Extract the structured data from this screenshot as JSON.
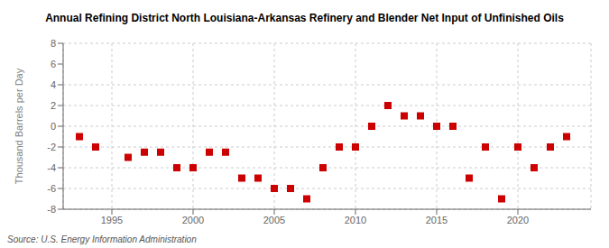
{
  "chart_data": {
    "type": "scatter",
    "title": "Annual Refining District North Louisiana-Arkansas Refinery and Blender Net Input of Unfinished Oils",
    "ylabel": "Thousand Barrels per Day",
    "source": "Source: U.S. Energy Information Administration",
    "x": [
      1993,
      1994,
      1996,
      1997,
      1998,
      1999,
      2000,
      2001,
      2002,
      2003,
      2004,
      2005,
      2006,
      2007,
      2008,
      2009,
      2010,
      2011,
      2012,
      2013,
      2014,
      2015,
      2016,
      2017,
      2018,
      2019,
      2020,
      2021,
      2022,
      2023
    ],
    "values": [
      -1,
      -2,
      -3,
      -2.5,
      -2.5,
      -4,
      -4,
      -2.5,
      -2.5,
      -5,
      -5,
      -6,
      -6,
      -7,
      -4,
      -2,
      -2,
      0,
      2,
      1,
      1,
      0,
      0,
      -5,
      -2,
      -7,
      -2,
      -4,
      -2,
      -1
    ],
    "color": "#cc0000",
    "marker": "square",
    "xlim": [
      1992.0,
      2024.5
    ],
    "xticks": [
      1995,
      2000,
      2005,
      2010,
      2015,
      2020
    ],
    "ylim": [
      -8,
      8
    ],
    "yticks": [
      -8,
      -6,
      -4,
      -2,
      0,
      2,
      4,
      6,
      8
    ],
    "grid": true
  }
}
